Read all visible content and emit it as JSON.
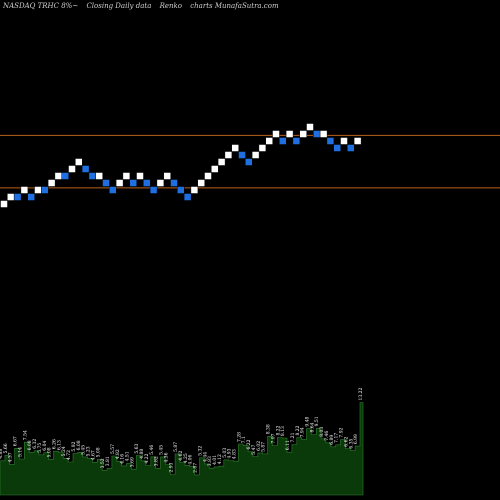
{
  "title": {
    "symbol": "NASDAQ TRHC 8%~",
    "kind": "Closing Daily data",
    "chart_name": "Renko",
    "site": "charts MunafaSutra.com"
  },
  "colors": {
    "background": "#000000",
    "up_brick": "#ffffff",
    "down_brick": "#1f6fe0",
    "level_line": "#b8621b",
    "volume_fill": "#0a3a0a",
    "volume_edge": "#2f7d2f"
  },
  "chart_data": {
    "type": "renko",
    "bricks": [
      {
        "level": 0,
        "dir": "up"
      },
      {
        "level": 1,
        "dir": "up"
      },
      {
        "level": 1,
        "dir": "down"
      },
      {
        "level": 2,
        "dir": "up"
      },
      {
        "level": 1,
        "dir": "down"
      },
      {
        "level": 2,
        "dir": "up"
      },
      {
        "level": 2,
        "dir": "down"
      },
      {
        "level": 3,
        "dir": "up"
      },
      {
        "level": 4,
        "dir": "up"
      },
      {
        "level": 4,
        "dir": "down"
      },
      {
        "level": 5,
        "dir": "up"
      },
      {
        "level": 6,
        "dir": "up"
      },
      {
        "level": 5,
        "dir": "down"
      },
      {
        "level": 4,
        "dir": "down"
      },
      {
        "level": 4,
        "dir": "up"
      },
      {
        "level": 3,
        "dir": "down"
      },
      {
        "level": 2,
        "dir": "down"
      },
      {
        "level": 3,
        "dir": "up"
      },
      {
        "level": 4,
        "dir": "up"
      },
      {
        "level": 3,
        "dir": "down"
      },
      {
        "level": 4,
        "dir": "up"
      },
      {
        "level": 3,
        "dir": "down"
      },
      {
        "level": 2,
        "dir": "down"
      },
      {
        "level": 3,
        "dir": "up"
      },
      {
        "level": 4,
        "dir": "up"
      },
      {
        "level": 3,
        "dir": "down"
      },
      {
        "level": 2,
        "dir": "down"
      },
      {
        "level": 1,
        "dir": "down"
      },
      {
        "level": 2,
        "dir": "up"
      },
      {
        "level": 3,
        "dir": "up"
      },
      {
        "level": 4,
        "dir": "up"
      },
      {
        "level": 5,
        "dir": "up"
      },
      {
        "level": 6,
        "dir": "up"
      },
      {
        "level": 7,
        "dir": "up"
      },
      {
        "level": 8,
        "dir": "up"
      },
      {
        "level": 7,
        "dir": "down"
      },
      {
        "level": 6,
        "dir": "down"
      },
      {
        "level": 7,
        "dir": "up"
      },
      {
        "level": 8,
        "dir": "up"
      },
      {
        "level": 9,
        "dir": "up"
      },
      {
        "level": 10,
        "dir": "up"
      },
      {
        "level": 9,
        "dir": "down"
      },
      {
        "level": 10,
        "dir": "up"
      },
      {
        "level": 9,
        "dir": "down"
      },
      {
        "level": 10,
        "dir": "up"
      },
      {
        "level": 11,
        "dir": "up"
      },
      {
        "level": 10,
        "dir": "down"
      },
      {
        "level": 10,
        "dir": "up"
      },
      {
        "level": 9,
        "dir": "down"
      },
      {
        "level": 8,
        "dir": "down"
      },
      {
        "level": 9,
        "dir": "up"
      },
      {
        "level": 8,
        "dir": "down"
      },
      {
        "level": 9,
        "dir": "up"
      }
    ],
    "levels_lines": [
      9.8,
      2.3
    ],
    "volume_labels": [
      "4.88",
      "5.66",
      "4.37",
      "6.67",
      "5.14",
      "7.54",
      "6.08",
      "6.32",
      "5.75",
      "6.04",
      "5.08",
      "6.26",
      "6.13",
      "5.24",
      "4.72",
      "5.92",
      "6.08",
      "5.45",
      "5.23",
      "4.67",
      "5.08",
      "3.52",
      "3.81",
      "5.57",
      "4.82",
      "4.16",
      "4.51",
      "3.69",
      "5.63",
      "4.88",
      "4.22",
      "5.46",
      "3.82",
      "5.45",
      "4.36",
      "2.93",
      "5.87",
      "4.62",
      "4.25",
      "4.06",
      "2.87",
      "5.32",
      "4.44",
      "3.83",
      "4.01",
      "4.12",
      "5.03",
      "4.93",
      "4.83",
      "7.28",
      "7.1",
      "6.22",
      "5.47",
      "6.02",
      "5.87",
      "8.38",
      "7.07",
      "8.22",
      "8.13",
      "6.11",
      "7.21",
      "8.22",
      "7.94",
      "9.48",
      "8.64",
      "9.51",
      "8.03",
      "7.46",
      "6.89",
      "7.17",
      "7.92",
      "6.62",
      "6.35",
      "6.99",
      "13.22"
    ],
    "volume_values": [
      4.88,
      5.66,
      4.37,
      6.67,
      5.14,
      7.54,
      6.08,
      6.32,
      5.75,
      6.04,
      5.08,
      6.26,
      6.13,
      5.24,
      4.72,
      5.92,
      6.08,
      5.45,
      5.23,
      4.67,
      5.08,
      3.52,
      3.81,
      5.57,
      4.82,
      4.16,
      4.51,
      3.69,
      5.63,
      4.88,
      4.22,
      5.46,
      3.82,
      5.45,
      4.36,
      2.93,
      5.87,
      4.62,
      4.25,
      4.06,
      2.87,
      5.32,
      4.44,
      3.83,
      4.01,
      4.12,
      5.03,
      4.93,
      4.83,
      7.28,
      7.1,
      6.22,
      5.47,
      6.02,
      5.87,
      8.38,
      7.07,
      8.22,
      8.13,
      6.11,
      7.21,
      8.22,
      7.94,
      9.48,
      8.64,
      9.51,
      8.03,
      7.46,
      6.89,
      7.17,
      7.92,
      6.62,
      6.35,
      6.99,
      13.22
    ]
  }
}
